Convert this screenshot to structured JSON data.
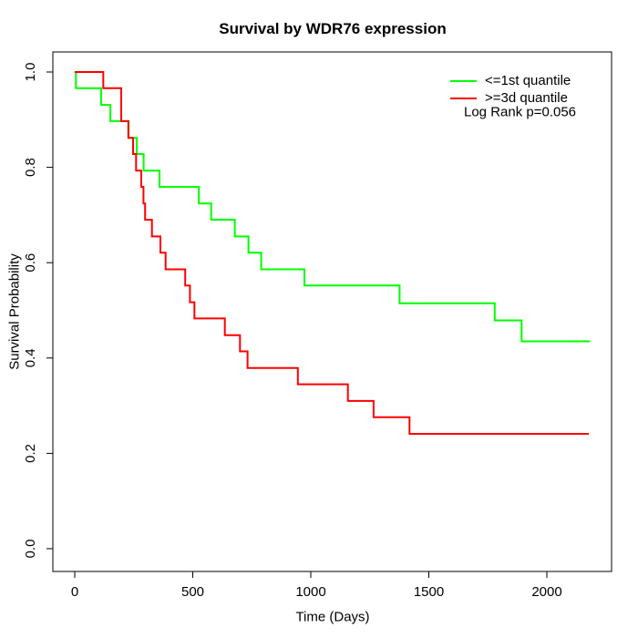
{
  "chart_data": {
    "type": "line",
    "subtype": "kaplan-meier-step",
    "title": "Survival by WDR76 expression",
    "xlabel": "Time (Days)",
    "ylabel": "Survival Probability",
    "xlim": [
      0,
      2200
    ],
    "ylim": [
      0.0,
      1.0
    ],
    "x_ticks": [
      0,
      500,
      1000,
      1500,
      2000
    ],
    "y_ticks": [
      "0.0",
      "0.2",
      "0.4",
      "0.6",
      "0.8",
      "1.0"
    ],
    "grid": false,
    "legend_position": "top-right",
    "annotation": "Log Rank p=0.056",
    "series": [
      {
        "name": "<=1st quantile",
        "color": "#00ff00",
        "steps": [
          [
            0,
            1.0
          ],
          [
            5,
            0.966
          ],
          [
            112,
            0.931
          ],
          [
            151,
            0.897
          ],
          [
            228,
            0.862
          ],
          [
            263,
            0.828
          ],
          [
            292,
            0.793
          ],
          [
            359,
            0.759
          ],
          [
            526,
            0.724
          ],
          [
            578,
            0.69
          ],
          [
            678,
            0.655
          ],
          [
            736,
            0.621
          ],
          [
            790,
            0.586
          ],
          [
            973,
            0.552
          ],
          [
            1376,
            0.515
          ],
          [
            1779,
            0.479
          ],
          [
            1893,
            0.435
          ]
        ],
        "end_time": 2183
      },
      {
        "name": ">=3d quantile",
        "color": "#ff0000",
        "steps": [
          [
            0,
            1.0
          ],
          [
            121,
            0.966
          ],
          [
            197,
            0.897
          ],
          [
            227,
            0.862
          ],
          [
            247,
            0.828
          ],
          [
            260,
            0.793
          ],
          [
            282,
            0.759
          ],
          [
            291,
            0.724
          ],
          [
            298,
            0.69
          ],
          [
            327,
            0.655
          ],
          [
            363,
            0.621
          ],
          [
            385,
            0.586
          ],
          [
            468,
            0.552
          ],
          [
            488,
            0.517
          ],
          [
            507,
            0.483
          ],
          [
            636,
            0.448
          ],
          [
            700,
            0.414
          ],
          [
            732,
            0.379
          ],
          [
            945,
            0.345
          ],
          [
            1157,
            0.31
          ],
          [
            1266,
            0.276
          ],
          [
            1418,
            0.241
          ]
        ],
        "end_time": 2178
      }
    ]
  }
}
